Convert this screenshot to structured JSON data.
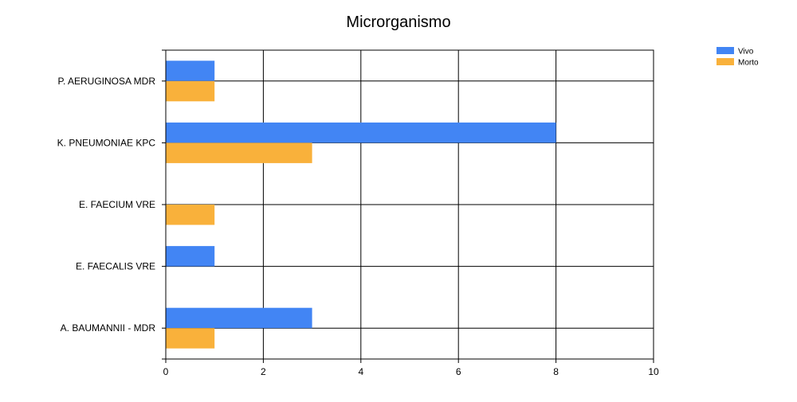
{
  "chart_data": {
    "type": "bar",
    "orientation": "horizontal",
    "title": "Microrganismo",
    "xlabel": "",
    "ylabel": "",
    "categories": [
      "P. AERUGINOSA MDR",
      "K. PNEUMONIAE KPC",
      "E. FAECIUM VRE",
      "E. FAECALIS VRE",
      "A. BAUMANNII - MDR"
    ],
    "series": [
      {
        "name": "Vivo",
        "color": "#4285f4",
        "values": [
          1,
          8,
          0,
          1,
          3
        ]
      },
      {
        "name": "Morto",
        "color": "#f9b13b",
        "values": [
          1,
          3,
          1,
          0,
          1
        ]
      }
    ],
    "xlim": [
      0,
      10
    ],
    "x_ticks": [
      0,
      2,
      4,
      6,
      8,
      10
    ],
    "grid": true,
    "legend": "top-right"
  }
}
